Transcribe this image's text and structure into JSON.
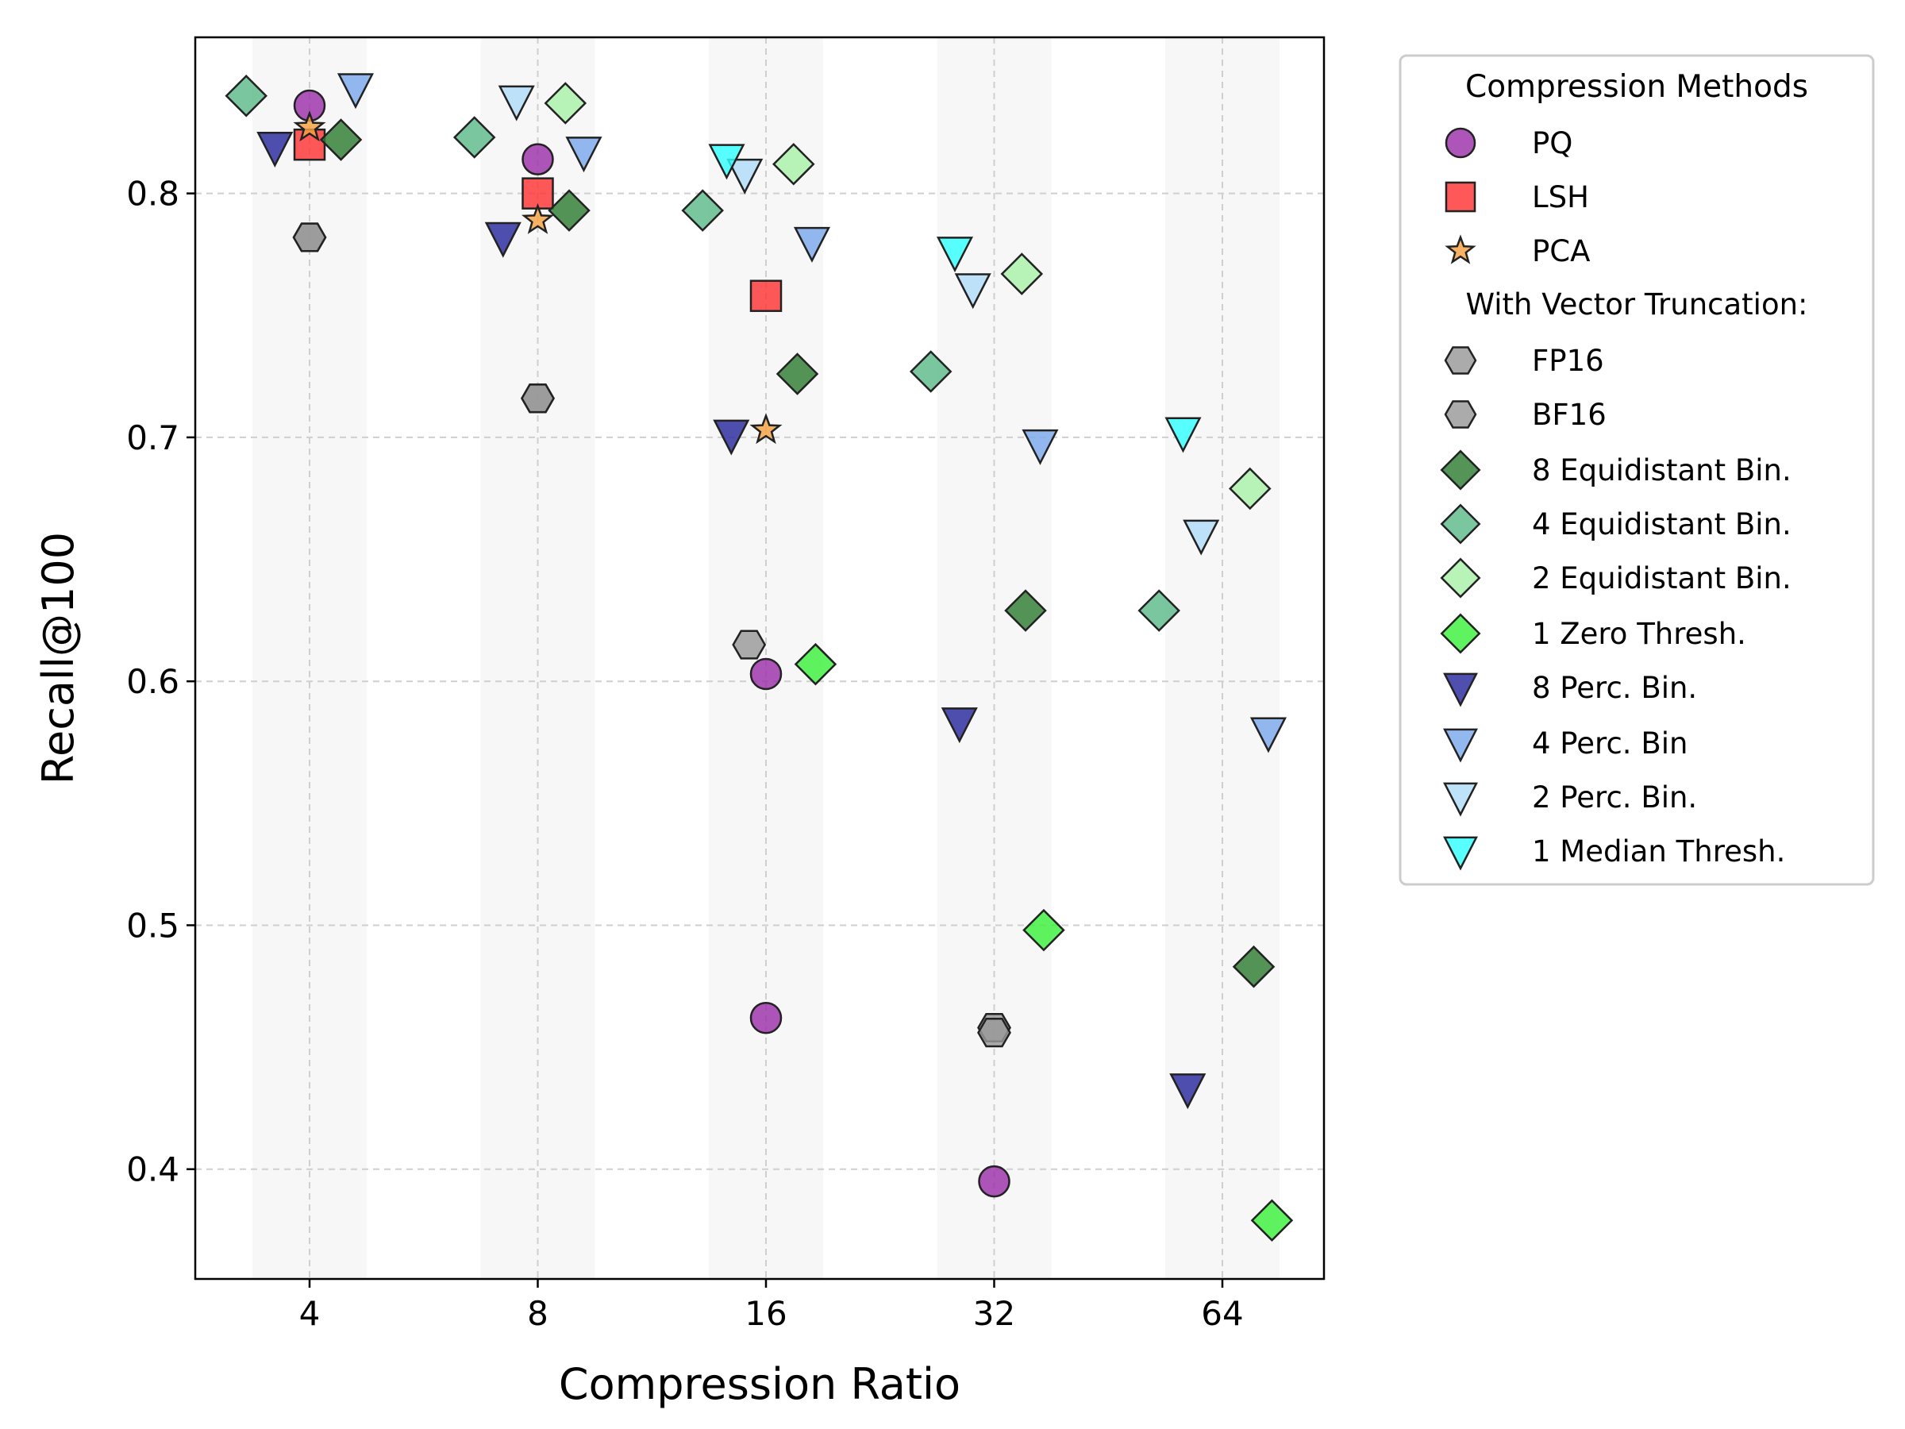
{
  "chart_data": {
    "type": "scatter",
    "xlabel": "Compression Ratio",
    "ylabel": "Recall@100",
    "x_scale": "log2",
    "x_ticks": [
      "4",
      "8",
      "16",
      "32",
      "64"
    ],
    "y_ticks": [
      "0.4",
      "0.5",
      "0.6",
      "0.7",
      "0.8"
    ],
    "ylim": [
      0.355,
      0.864
    ],
    "grid": true,
    "legend": {
      "placement": "outside-right",
      "title": "Compression Methods",
      "subtitle": "With Vector Truncation:"
    },
    "series": [
      {
        "name": "PQ",
        "marker": "circle",
        "color": "#9b30a8",
        "points": [
          {
            "x": 4,
            "y": 0.836
          },
          {
            "x": 8,
            "y": 0.814
          },
          {
            "x": 16,
            "y": 0.603
          },
          {
            "x": 16,
            "y": 0.462
          },
          {
            "x": 32,
            "y": 0.395
          }
        ]
      },
      {
        "name": "LSH",
        "marker": "square",
        "color": "#ff3333",
        "points": [
          {
            "x": 4,
            "y": 0.82
          },
          {
            "x": 8,
            "y": 0.8
          },
          {
            "x": 16,
            "y": 0.758
          }
        ]
      },
      {
        "name": "PCA",
        "marker": "star",
        "color": "#f5a142",
        "points": [
          {
            "x": 4,
            "y": 0.827
          },
          {
            "x": 8,
            "y": 0.789
          },
          {
            "x": 16,
            "y": 0.703
          }
        ]
      },
      {
        "name": "FP16",
        "marker": "hexagon",
        "color": "#999999",
        "points": [
          {
            "x": 4,
            "y": 0.782
          },
          {
            "x": 8,
            "y": 0.716
          },
          {
            "x": 15.2,
            "y": 0.615
          },
          {
            "x": 32,
            "y": 0.458
          }
        ]
      },
      {
        "name": "BF16",
        "marker": "hexagon",
        "color": "#999999",
        "points": [
          {
            "x": 4,
            "y": 0.782
          },
          {
            "x": 8,
            "y": 0.716
          },
          {
            "x": 32,
            "y": 0.456
          }
        ]
      },
      {
        "name": "8 Equidistant Bin.",
        "marker": "diamond",
        "color": "#2e7d32",
        "points": [
          {
            "x": 4.4,
            "y": 0.822
          },
          {
            "x": 8.8,
            "y": 0.793
          },
          {
            "x": 17.6,
            "y": 0.726
          },
          {
            "x": 35.2,
            "y": 0.629
          },
          {
            "x": 70.4,
            "y": 0.483
          }
        ]
      },
      {
        "name": "4 Equidistant Bin.",
        "marker": "diamond",
        "color": "#5dba8a",
        "points": [
          {
            "x": 3.3,
            "y": 0.84
          },
          {
            "x": 6.6,
            "y": 0.823
          },
          {
            "x": 13.2,
            "y": 0.793
          },
          {
            "x": 26.4,
            "y": 0.727
          },
          {
            "x": 52.8,
            "y": 0.629
          }
        ]
      },
      {
        "name": "2 Equidistant Bin.",
        "marker": "diamond",
        "color": "#a8f0a8",
        "points": [
          {
            "x": 8.7,
            "y": 0.837
          },
          {
            "x": 17.4,
            "y": 0.812
          },
          {
            "x": 34.8,
            "y": 0.767
          },
          {
            "x": 69.6,
            "y": 0.679
          }
        ]
      },
      {
        "name": "1 Zero Thresh.",
        "marker": "diamond",
        "color": "#3cf03c",
        "points": [
          {
            "x": 18.6,
            "y": 0.607
          },
          {
            "x": 37.2,
            "y": 0.498
          },
          {
            "x": 74.4,
            "y": 0.379
          }
        ]
      },
      {
        "name": "8 Perc. Bin.",
        "marker": "triangle-down",
        "color": "#28289e",
        "points": [
          {
            "x": 3.6,
            "y": 0.819
          },
          {
            "x": 7.2,
            "y": 0.782
          },
          {
            "x": 14.4,
            "y": 0.701
          },
          {
            "x": 28.8,
            "y": 0.583
          },
          {
            "x": 57.6,
            "y": 0.433
          }
        ]
      },
      {
        "name": "4 Perc. Bin",
        "marker": "triangle-down",
        "color": "#7ba7ec",
        "points": [
          {
            "x": 4.6,
            "y": 0.843
          },
          {
            "x": 9.2,
            "y": 0.817
          },
          {
            "x": 18.4,
            "y": 0.78
          },
          {
            "x": 36.8,
            "y": 0.697
          },
          {
            "x": 73.6,
            "y": 0.579
          }
        ]
      },
      {
        "name": "2 Perc. Bin.",
        "marker": "triangle-down",
        "color": "#b0dcf8",
        "points": [
          {
            "x": 7.5,
            "y": 0.838
          },
          {
            "x": 15,
            "y": 0.808
          },
          {
            "x": 30,
            "y": 0.761
          },
          {
            "x": 60,
            "y": 0.66
          }
        ]
      },
      {
        "name": "1 Median Thresh.",
        "marker": "triangle-down",
        "color": "#33ffff",
        "points": [
          {
            "x": 14.2,
            "y": 0.814
          },
          {
            "x": 28.4,
            "y": 0.776
          },
          {
            "x": 56.8,
            "y": 0.702
          }
        ]
      }
    ]
  }
}
